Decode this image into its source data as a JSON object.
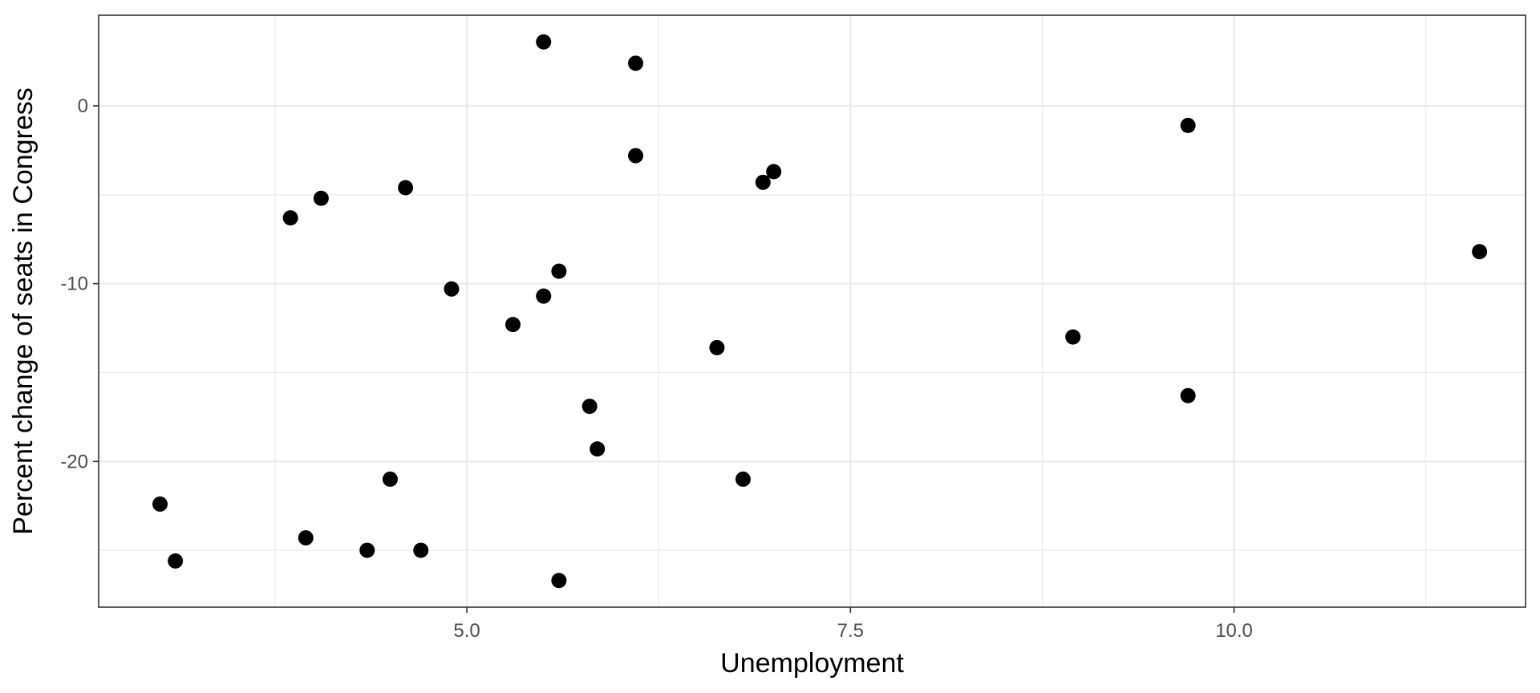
{
  "chart_data": {
    "type": "scatter",
    "title": "",
    "xlabel": "Unemployment",
    "ylabel": "Percent change of seats in Congress",
    "xlim": [
      2.6,
      11.9
    ],
    "ylim": [
      -28.2,
      5.1
    ],
    "x_ticks": [
      5.0,
      7.5,
      10.0
    ],
    "x_tick_labels": [
      "5.0",
      "7.5",
      "10.0"
    ],
    "x_minor_ticks": [
      3.75,
      6.25,
      8.75,
      11.25
    ],
    "y_ticks": [
      0,
      -10,
      -20
    ],
    "y_tick_labels": [
      "0",
      "-10",
      "-20"
    ],
    "y_minor_ticks": [
      -5,
      -15,
      -25
    ],
    "grid": true,
    "theme": "bw",
    "colors": {
      "point": "#000000",
      "grid": "#ebebeb",
      "panel_border": "#333333",
      "tick_label": "#4d4d4d"
    },
    "points": [
      {
        "x": 5.5,
        "y": 3.6
      },
      {
        "x": 6.1,
        "y": 2.4
      },
      {
        "x": 9.7,
        "y": -1.1
      },
      {
        "x": 6.1,
        "y": -2.8
      },
      {
        "x": 7.0,
        "y": -3.7
      },
      {
        "x": 6.93,
        "y": -4.3
      },
      {
        "x": 4.6,
        "y": -4.6
      },
      {
        "x": 4.05,
        "y": -5.2
      },
      {
        "x": 3.85,
        "y": -6.3
      },
      {
        "x": 11.6,
        "y": -8.2
      },
      {
        "x": 5.6,
        "y": -9.3
      },
      {
        "x": 4.9,
        "y": -10.3
      },
      {
        "x": 5.5,
        "y": -10.7
      },
      {
        "x": 5.3,
        "y": -12.3
      },
      {
        "x": 8.95,
        "y": -13.0
      },
      {
        "x": 6.63,
        "y": -13.6
      },
      {
        "x": 9.7,
        "y": -16.3
      },
      {
        "x": 5.8,
        "y": -16.9
      },
      {
        "x": 5.85,
        "y": -19.3
      },
      {
        "x": 4.5,
        "y": -21.0
      },
      {
        "x": 6.8,
        "y": -21.0
      },
      {
        "x": 3.0,
        "y": -22.4
      },
      {
        "x": 3.95,
        "y": -24.3
      },
      {
        "x": 3.1,
        "y": -25.6
      },
      {
        "x": 4.35,
        "y": -25.0
      },
      {
        "x": 4.7,
        "y": -25.0
      },
      {
        "x": 5.6,
        "y": -26.7
      }
    ]
  }
}
